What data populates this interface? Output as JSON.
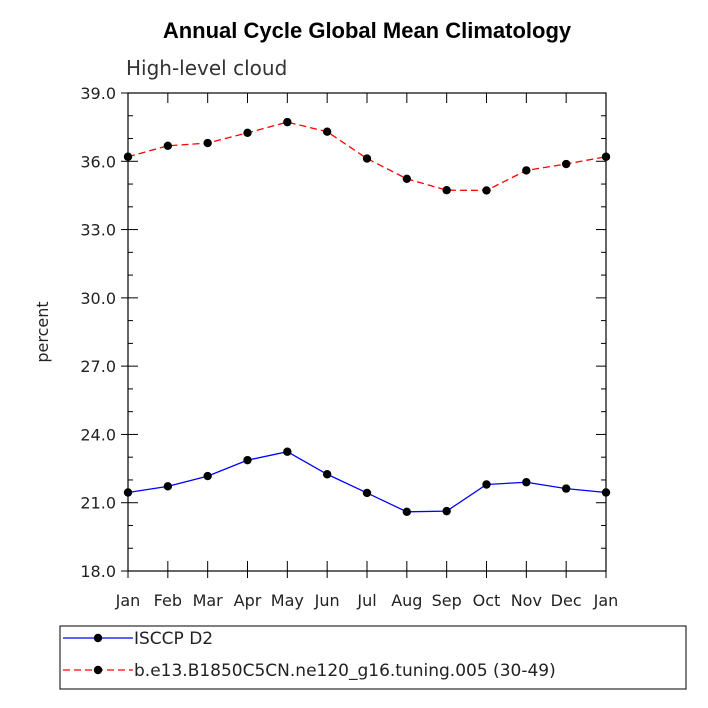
{
  "chart_data": {
    "type": "line",
    "title": "Annual Cycle Global Mean Climatology",
    "subtitle": "High-level cloud",
    "xlabel": "",
    "ylabel": "percent",
    "categories": [
      "Jan",
      "Feb",
      "Mar",
      "Apr",
      "May",
      "Jun",
      "Jul",
      "Aug",
      "Sep",
      "Oct",
      "Nov",
      "Dec",
      "Jan"
    ],
    "ylim": [
      18.0,
      39.0
    ],
    "yticks": [
      18.0,
      21.0,
      24.0,
      27.0,
      30.0,
      33.0,
      36.0,
      39.0
    ],
    "ytick_labels": [
      "18.0",
      "21.0",
      "24.0",
      "27.0",
      "30.0",
      "33.0",
      "36.0",
      "39.0"
    ],
    "grid": false,
    "legend_position": "bottom",
    "series": [
      {
        "name": "ISCCP D2",
        "color": "#0000ff",
        "dash": "solid",
        "values": [
          21.45,
          21.72,
          22.17,
          22.87,
          23.24,
          22.25,
          21.43,
          20.6,
          20.63,
          21.8,
          21.9,
          21.62,
          21.45
        ]
      },
      {
        "name": "b.e13.B1850C5CN.ne120_g16.tuning.005 (30-49)",
        "color": "#ff0000",
        "dash": "dashed",
        "values": [
          36.2,
          36.68,
          36.8,
          37.25,
          37.72,
          37.3,
          36.12,
          35.23,
          34.73,
          34.72,
          35.6,
          35.88,
          36.2
        ]
      }
    ]
  }
}
